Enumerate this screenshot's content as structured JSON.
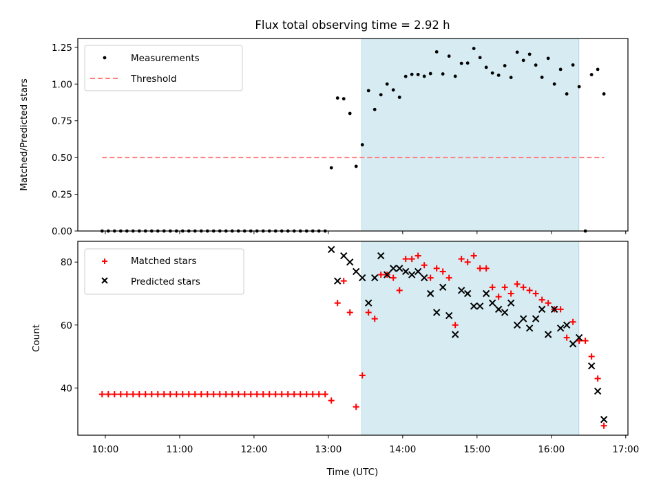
{
  "chart_data": [
    {
      "type": "scatter",
      "title": "Flux total observing time = 2.92 h",
      "xlabel": "",
      "ylabel": "Matched/Predicted stars",
      "xlim": [
        9.63,
        17.03
      ],
      "ylim": [
        0,
        1.31
      ],
      "yticks": [
        0,
        0.25,
        0.5,
        0.75,
        1.0,
        1.25
      ],
      "ytick_labels": [
        "0.00",
        "0.25",
        "0.50",
        "0.75",
        "1.00",
        "1.25"
      ],
      "xticks": [
        10,
        11,
        12,
        13,
        14,
        15,
        16,
        17
      ],
      "xtick_labels_visible": false,
      "grid": false,
      "legend": {
        "placement": "top-left",
        "entries": [
          "Measurements",
          "Threshold"
        ]
      },
      "shaded_span": {
        "from": 13.45,
        "to": 16.37,
        "color": "#add8e6"
      },
      "series": [
        {
          "name": "Measurements",
          "kind": "points",
          "color": "#000000",
          "x_start": 9.957,
          "x_step_minutes": 5,
          "values": [
            0,
            0,
            0,
            0,
            0,
            0,
            0,
            0,
            0,
            0,
            0,
            0,
            0,
            0,
            0,
            0,
            0,
            0,
            0,
            0,
            0,
            0,
            0,
            0,
            0,
            0,
            0,
            0,
            0,
            0,
            0,
            0,
            0,
            0,
            0,
            0,
            0,
            0.43,
            0.905,
            0.9,
            0.8,
            0.44,
            0.587,
            0.955,
            0.827,
            0.927,
            1.0,
            0.96,
            0.91,
            1.052,
            1.066,
            1.065,
            1.053,
            1.071,
            1.219,
            1.069,
            1.19,
            1.053,
            1.141,
            1.143,
            1.242,
            1.18,
            1.114,
            1.075,
            1.06,
            1.125,
            1.045,
            1.217,
            1.161,
            1.203,
            1.129,
            1.046,
            1.175,
            1.0,
            1.1,
            0.933,
            1.13,
            0.982,
            0,
            1.064,
            1.1,
            0.933
          ]
        },
        {
          "name": "Threshold",
          "kind": "dashed-line",
          "color": "#ff7f7f",
          "value": 0.5,
          "x_from": 9.957,
          "x_to": 16.707
        }
      ]
    },
    {
      "type": "scatter",
      "title": "",
      "xlabel": "Time (UTC)",
      "ylabel": "Count",
      "xlim": [
        9.63,
        17.03
      ],
      "ylim": [
        25,
        86.6
      ],
      "yticks": [
        40,
        60,
        80
      ],
      "ytick_labels": [
        "40",
        "60",
        "80"
      ],
      "xticks": [
        10,
        11,
        12,
        13,
        14,
        15,
        16,
        17
      ],
      "xtick_labels": [
        "10:00",
        "11:00",
        "12:00",
        "13:00",
        "14:00",
        "15:00",
        "16:00",
        "17:00"
      ],
      "grid": false,
      "legend": {
        "placement": "top-left",
        "entries": [
          "Matched stars",
          "Predicted stars"
        ]
      },
      "shaded_span": {
        "from": 13.45,
        "to": 16.37,
        "color": "#add8e6"
      },
      "series": [
        {
          "name": "Matched stars",
          "marker": "+",
          "color": "#ff0000",
          "x_start": 9.957,
          "x_step_minutes": 5,
          "values": [
            38,
            38,
            38,
            38,
            38,
            38,
            38,
            38,
            38,
            38,
            38,
            38,
            38,
            38,
            38,
            38,
            38,
            38,
            38,
            38,
            38,
            38,
            38,
            38,
            38,
            38,
            38,
            38,
            38,
            38,
            38,
            38,
            38,
            38,
            38,
            38,
            38,
            36,
            67,
            74,
            64,
            34,
            44,
            64,
            62,
            76,
            76,
            75,
            71,
            81,
            81,
            82,
            79,
            75,
            78,
            77,
            75,
            60,
            81,
            80,
            82,
            78,
            78,
            72,
            69,
            72,
            70,
            73,
            72,
            71,
            70,
            68,
            67,
            65,
            65,
            56,
            61,
            55,
            55,
            50,
            43,
            28
          ]
        },
        {
          "name": "Predicted stars",
          "marker": "x",
          "color": "#000000",
          "x_start": 9.957,
          "x_step_minutes": 5,
          "values": [
            null,
            null,
            null,
            null,
            null,
            null,
            null,
            null,
            null,
            null,
            null,
            null,
            null,
            null,
            null,
            null,
            null,
            null,
            null,
            null,
            null,
            null,
            null,
            null,
            null,
            null,
            null,
            null,
            null,
            null,
            null,
            null,
            null,
            null,
            null,
            null,
            null,
            84,
            74,
            82,
            80,
            77,
            75,
            67,
            75,
            82,
            76,
            78,
            78,
            77,
            76,
            77,
            75,
            70,
            64,
            72,
            63,
            57,
            71,
            70,
            66,
            66,
            70,
            67,
            65,
            64,
            67,
            60,
            62,
            59,
            62,
            65,
            57,
            65,
            59,
            60,
            54,
            56,
            null,
            47,
            39,
            30
          ]
        }
      ]
    }
  ]
}
